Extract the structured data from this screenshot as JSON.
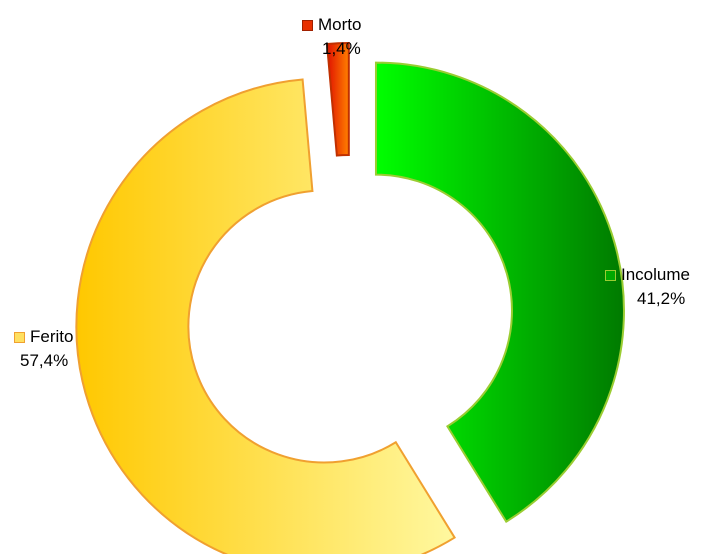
{
  "chart_data": {
    "type": "pie",
    "style": "donut-exploded",
    "title": "",
    "slices": [
      {
        "label": "Incolume",
        "value": 41.2,
        "value_label": "41,2%",
        "color_dark": "#007a00",
        "color_light": "#00ff00",
        "border": "#9acd32"
      },
      {
        "label": "Ferito",
        "value": 57.4,
        "value_label": "57,4%",
        "color_dark": "#ffc800",
        "color_light": "#fff8a0",
        "border": "#f0a030"
      },
      {
        "label": "Morto",
        "value": 1.4,
        "value_label": "1,4%",
        "color_dark": "#e01000",
        "color_light": "#ff8000",
        "border": "#c03000"
      }
    ]
  }
}
